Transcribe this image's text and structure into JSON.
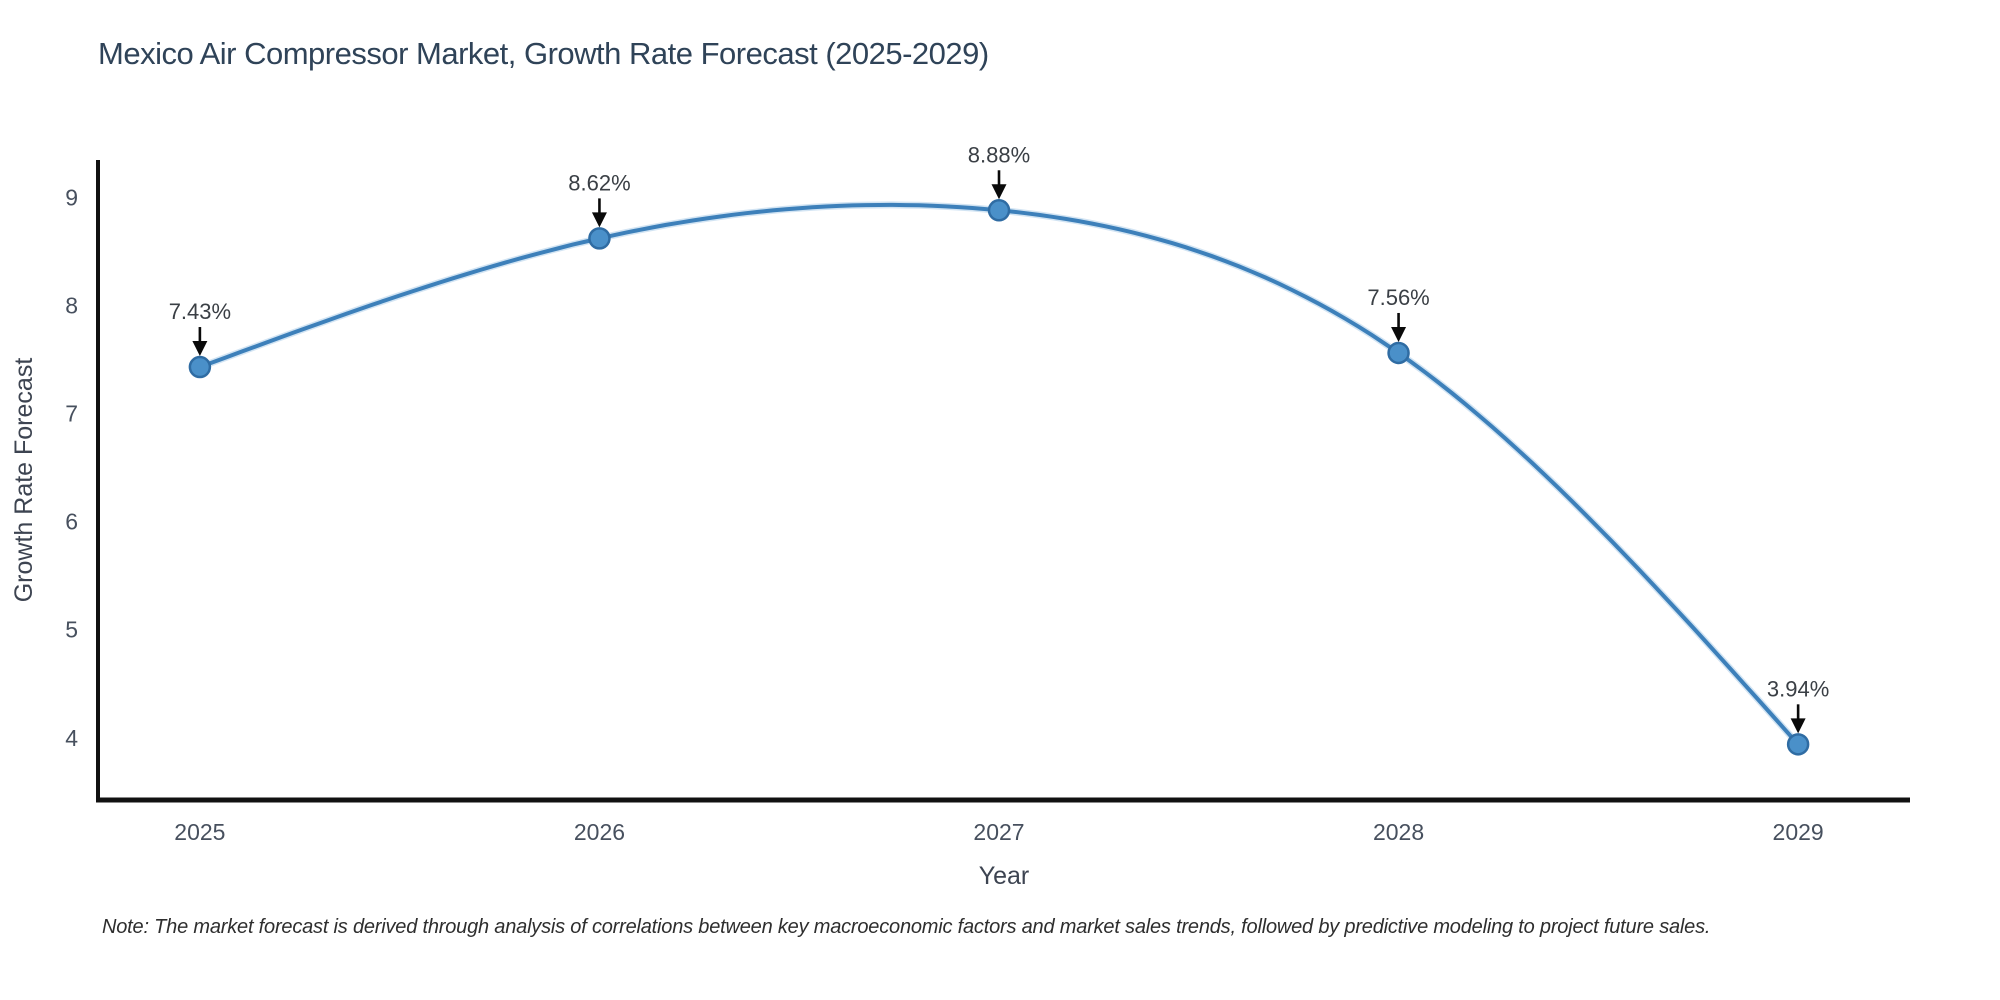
{
  "title": "Mexico Air Compressor Market, Growth Rate Forecast (2025-2029)",
  "note": "Note: The market forecast is derived through analysis of correlations between key macroeconomic factors and market sales trends, followed by predictive modeling to project future sales.",
  "chart_data": {
    "type": "line",
    "title": "Mexico Air Compressor Market, Growth Rate Forecast (2025-2029)",
    "xlabel": "Year",
    "ylabel": "Growth Rate Forecast",
    "x": [
      2025,
      2026,
      2027,
      2028,
      2029
    ],
    "series": [
      {
        "name": "Growth Rate Forecast",
        "values": [
          7.43,
          8.62,
          8.88,
          7.56,
          3.94
        ],
        "point_labels": [
          "7.43%",
          "8.62%",
          "8.88%",
          "7.56%",
          "3.94%"
        ]
      }
    ],
    "curve": "spline",
    "grid": false,
    "legend": "none",
    "annotations": "black arrows pointing down from each percentage label to its data point",
    "xticks": [
      2025,
      2026,
      2027,
      2028,
      2029
    ],
    "xtick_labels": [
      "2025",
      "2026",
      "2027",
      "2028",
      "2029"
    ],
    "yticks": [
      4,
      5,
      6,
      7,
      8,
      9
    ],
    "ytick_labels": [
      "4",
      "5",
      "6",
      "7",
      "8",
      "9"
    ],
    "xlim": [
      2024.745,
      2029.28
    ],
    "ylim": [
      3.425,
      9.345
    ],
    "colors": {
      "line": "#3d80ba",
      "line_halo": "#9cc4e4",
      "marker_fill": "#4a90c9",
      "marker_edge": "#2f6ca3",
      "spine": "#111111",
      "tick_label": "#47505e",
      "axis_title": "#3d4451",
      "annotation_text": "#3a3f45",
      "annotation_arrow": "#0a0a0a",
      "title": "#2f4358"
    }
  }
}
